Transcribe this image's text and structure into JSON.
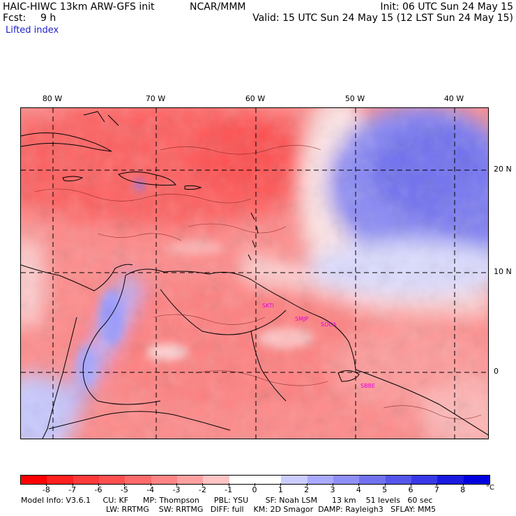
{
  "header": {
    "model_title": "HAIC-HIWC 13km ARW-GFS init",
    "org": "NCAR/MMM",
    "init": "Init: 06 UTC Sun 24 May 15",
    "fcst_label": "Fcst:",
    "fcst_value": "9 h",
    "valid": "Valid: 15 UTC Sun 24 May 15 (12 LST Sun 24 May 15)",
    "field": "Lifted index"
  },
  "map": {
    "lon_labels": [
      "80 W",
      "70 W",
      "60 W",
      "50 W",
      "40 W"
    ],
    "lat_labels": [
      "20 N",
      "10 N",
      "0"
    ],
    "station_labels": [
      "SKTI",
      "SMJP",
      "SOCA",
      "SBBE"
    ],
    "colors": {
      "gridline": "#000000",
      "coastline": "#000000",
      "station": "#e000e0"
    }
  },
  "colorbar": {
    "tick_labels": [
      "-8",
      "-7",
      "-6",
      "-5",
      "-4",
      "-3",
      "-2",
      "-1",
      "0",
      "1",
      "2",
      "3",
      "4",
      "5",
      "6",
      "7",
      "8"
    ],
    "unit": "°C",
    "colors": [
      "#ff0000",
      "#ff2020",
      "#ff3a3a",
      "#ff5050",
      "#ff6a6a",
      "#ff8585",
      "#ffa0a0",
      "#ffc4c4",
      "#ffffff",
      "#ffffff",
      "#ccccff",
      "#aaaaff",
      "#8f8ff7",
      "#7272f0",
      "#5555ec",
      "#3838e8",
      "#1a1ae0",
      "#0000e0"
    ]
  },
  "footer": {
    "line1": "Model Info: V3.6.1     CU: KF      MP: Thompson      PBL: YSU       SF: Noah LSM      13 km    51 levels   60 sec",
    "line2": "LW: RRTMG    SW: RRTMG   DIFF: full    KM: 2D Smagor  DAMP: Rayleigh3   SFLAY: MM5"
  }
}
